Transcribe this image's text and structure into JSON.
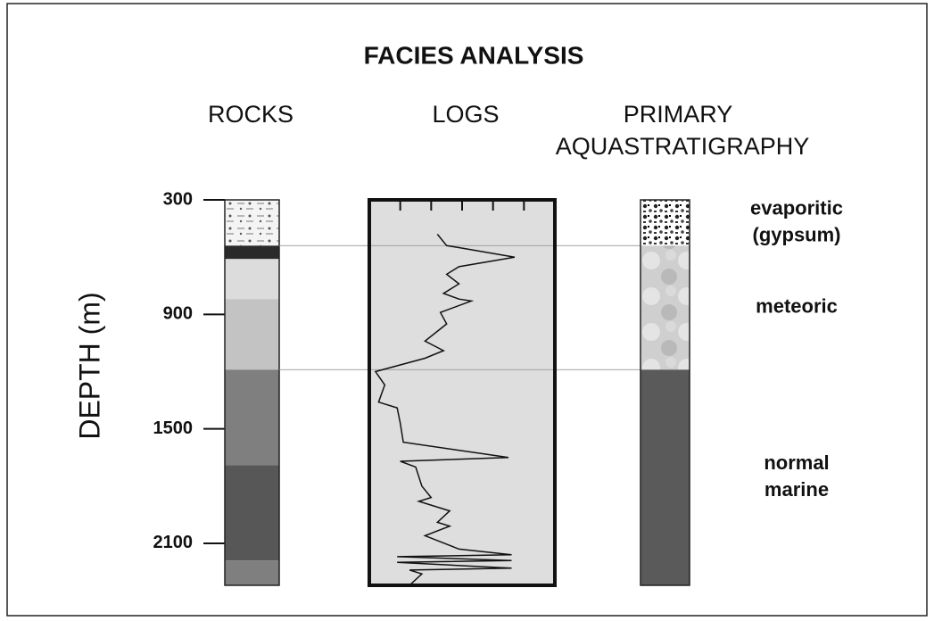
{
  "title": "FACIES ANALYSIS",
  "depth_axis": {
    "label": "DEPTH (m)",
    "lim": [
      300,
      2320
    ],
    "ticks": [
      300,
      900,
      1500,
      2100
    ]
  },
  "rocks": {
    "title": "ROCKS",
    "layers": [
      {
        "top": 300,
        "base": 540,
        "fill": "evaporite"
      },
      {
        "top": 540,
        "base": 610,
        "fill": "#2a2a2a"
      },
      {
        "top": 610,
        "base": 820,
        "fill": "#dcdcdc"
      },
      {
        "top": 820,
        "base": 1190,
        "fill": "#c3c3c3"
      },
      {
        "top": 1190,
        "base": 1690,
        "fill": "#7f7f7f"
      },
      {
        "top": 1690,
        "base": 2190,
        "fill": "#575757"
      },
      {
        "top": 2190,
        "base": 2320,
        "fill": "#7f7f7f"
      }
    ]
  },
  "logs": {
    "title": "LOGS",
    "xlim": [
      0,
      6
    ],
    "xticks": [
      1,
      2,
      3,
      4,
      5
    ],
    "depths": [
      480,
      540,
      550,
      600,
      650,
      690,
      740,
      790,
      820,
      830,
      890,
      950,
      1040,
      1090,
      1130,
      1200,
      1270,
      1360,
      1390,
      1470,
      1570,
      1650,
      1670,
      1700,
      1800,
      1860,
      1880,
      1930,
      1990,
      2010,
      2060,
      2130,
      2160,
      2170,
      2190,
      2200,
      2230,
      2240,
      2260,
      2320
    ],
    "values": [
      2.2,
      2.5,
      2.9,
      4.7,
      2.9,
      2.5,
      2.9,
      2.4,
      2.9,
      3.3,
      2.3,
      2.5,
      1.8,
      2.4,
      1.8,
      0.2,
      0.5,
      0.3,
      0.9,
      1.0,
      1.1,
      4.5,
      1.0,
      1.5,
      1.7,
      2.0,
      1.6,
      2.6,
      2.2,
      2.6,
      1.8,
      2.9,
      4.6,
      0.9,
      4.6,
      0.9,
      4.6,
      1.3,
      1.7,
      1.3
    ]
  },
  "aquastratigraphy": {
    "title": [
      "PRIMARY",
      "AQUASTRATIGRAPHY"
    ],
    "zones": [
      {
        "top": 300,
        "base": 540,
        "fill": "evaporite",
        "label": [
          "evaporitic",
          "(gypsum)"
        ]
      },
      {
        "top": 540,
        "base": 1190,
        "fill": "mottled",
        "label": [
          "meteoric"
        ]
      },
      {
        "top": 1190,
        "base": 2320,
        "fill": "#5a5a5a",
        "label": [
          "normal",
          "marine"
        ]
      }
    ]
  }
}
